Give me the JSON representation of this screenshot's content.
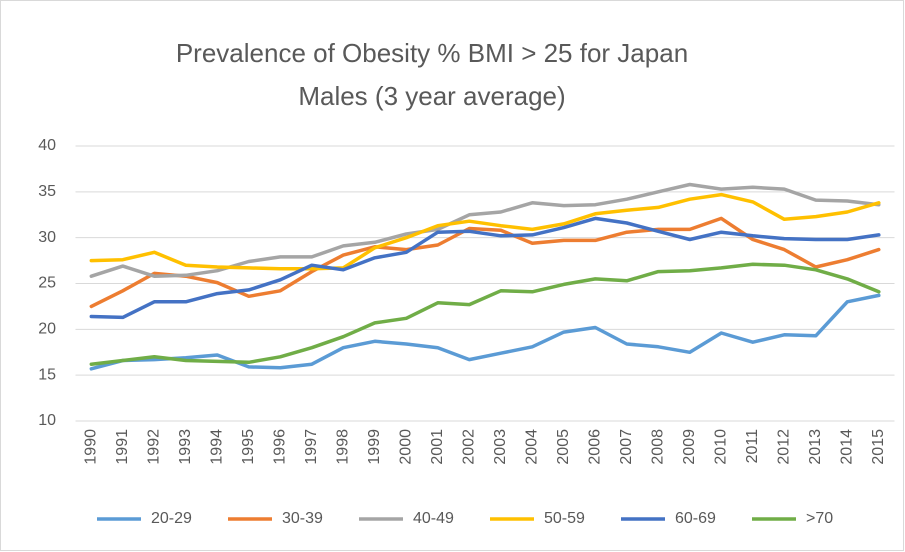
{
  "chart_data": {
    "type": "line",
    "title": [
      "Prevalence of Obesity % BMI > 25 for Japan",
      "Males (3 year average)"
    ],
    "categories": [
      "1990",
      "1991",
      "1992",
      "1993",
      "1994",
      "1995",
      "1996",
      "1997",
      "1998",
      "1999",
      "2000",
      "2001",
      "2002",
      "2003",
      "2004",
      "2005",
      "2006",
      "2007",
      "2008",
      "2009",
      "2010",
      "2011",
      "2012",
      "2013",
      "2014",
      "2015"
    ],
    "series": [
      {
        "name": "20-29",
        "color": "#5b9bd5",
        "values": [
          15.7,
          16.6,
          16.7,
          16.9,
          17.2,
          15.9,
          15.8,
          16.2,
          18.0,
          18.7,
          18.4,
          18.0,
          16.7,
          17.4,
          18.1,
          19.7,
          20.2,
          18.4,
          18.1,
          17.5,
          19.6,
          18.6,
          19.4,
          19.3,
          23.0,
          23.7
        ]
      },
      {
        "name": "30-39",
        "color": "#ed7d31",
        "values": [
          22.5,
          24.2,
          26.1,
          25.8,
          25.1,
          23.6,
          24.2,
          26.3,
          28.1,
          29.0,
          28.7,
          29.2,
          31.0,
          30.8,
          29.4,
          29.7,
          29.7,
          30.6,
          30.9,
          30.9,
          32.1,
          29.8,
          28.7,
          26.8,
          27.6,
          28.7
        ]
      },
      {
        "name": "40-49",
        "color": "#a5a5a5",
        "values": [
          25.8,
          26.9,
          25.8,
          25.9,
          26.4,
          27.4,
          27.9,
          27.9,
          29.1,
          29.5,
          30.4,
          30.9,
          32.5,
          32.8,
          33.8,
          33.5,
          33.6,
          34.2,
          35.0,
          35.8,
          35.3,
          35.5,
          35.3,
          34.1,
          34.0,
          33.6
        ]
      },
      {
        "name": "50-59",
        "color": "#ffc000",
        "values": [
          27.5,
          27.6,
          28.4,
          27.0,
          26.8,
          26.7,
          26.6,
          26.6,
          26.7,
          28.9,
          30.0,
          31.3,
          31.8,
          31.3,
          30.9,
          31.5,
          32.6,
          33.0,
          33.3,
          34.2,
          34.7,
          33.9,
          32.0,
          32.3,
          32.8,
          33.8
        ]
      },
      {
        "name": "60-69",
        "color": "#4472c4",
        "values": [
          21.4,
          21.3,
          23.0,
          23.0,
          23.9,
          24.3,
          25.4,
          27.0,
          26.5,
          27.8,
          28.4,
          30.6,
          30.7,
          30.2,
          30.3,
          31.1,
          32.1,
          31.6,
          30.7,
          29.8,
          30.6,
          30.2,
          29.9,
          29.8,
          29.8,
          30.3
        ]
      },
      {
        "name": ">70",
        "color": "#70ad47",
        "values": [
          16.2,
          16.6,
          17.0,
          16.6,
          16.5,
          16.4,
          17.0,
          18.0,
          19.2,
          20.7,
          21.2,
          22.9,
          22.7,
          24.2,
          24.1,
          24.9,
          25.5,
          25.3,
          26.3,
          26.4,
          26.7,
          27.1,
          27.0,
          26.5,
          25.5,
          24.1
        ]
      }
    ],
    "ylim": [
      10,
      40
    ],
    "yticks": [
      10,
      15,
      20,
      25,
      30,
      35,
      40
    ],
    "grid": true,
    "legend": "bottom"
  }
}
